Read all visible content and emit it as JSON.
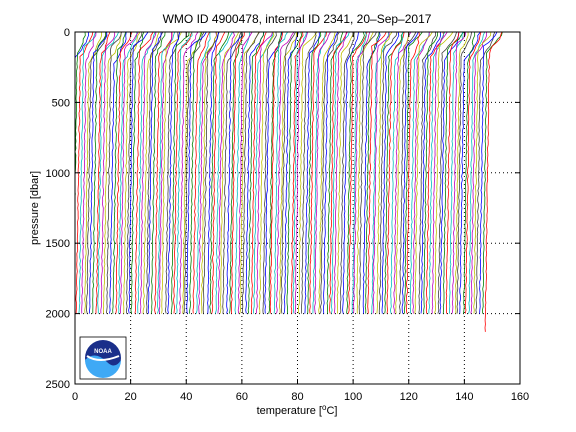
{
  "chart_data": {
    "type": "line",
    "title": "WMO ID 4900478, internal ID 2341, 20–Sep–2017",
    "xlabel_prefix": "temperature [",
    "xlabel_sup": "o",
    "xlabel_suffix": "C]",
    "ylabel": "pressure [dbar]",
    "xlim": [
      0,
      160
    ],
    "ylim": [
      0,
      2500
    ],
    "y_reversed": true,
    "x_ticks": [
      0,
      20,
      40,
      60,
      80,
      100,
      120,
      140,
      160
    ],
    "y_ticks": [
      0,
      500,
      1000,
      1500,
      2000,
      2500
    ],
    "grid": "dotted",
    "legend": "none",
    "profile_count": 150,
    "profile_offset_step": 1.0,
    "profile_shape": {
      "surface_temp": 8.0,
      "thermocline_depth": 150,
      "deep_temp": 2.5,
      "bottom_pressure": 2000
    },
    "series_colors": [
      "#0000ff",
      "#008000",
      "#ff0000",
      "#00bfbf",
      "#bf00bf",
      "#bfbf00",
      "#404040"
    ],
    "logo": {
      "text": "NOAA",
      "position": "bottom-left"
    }
  }
}
